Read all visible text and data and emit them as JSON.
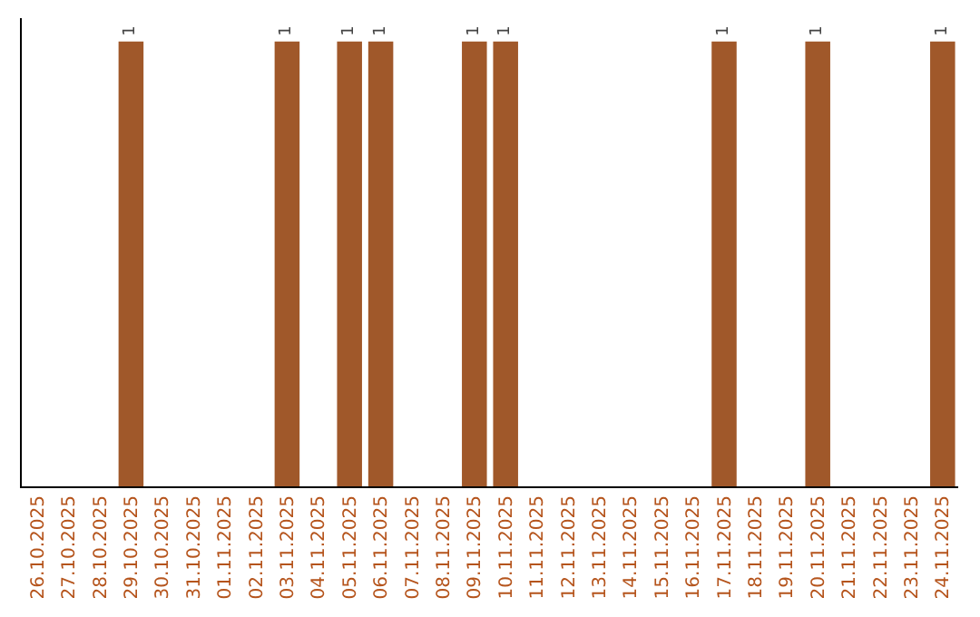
{
  "chart_data": {
    "type": "bar",
    "categories": [
      "26.10.2025",
      "27.10.2025",
      "28.10.2025",
      "29.10.2025",
      "30.10.2025",
      "31.10.2025",
      "01.11.2025",
      "02.11.2025",
      "03.11.2025",
      "04.11.2025",
      "05.11.2025",
      "06.11.2025",
      "07.11.2025",
      "08.11.2025",
      "09.11.2025",
      "10.11.2025",
      "11.11.2025",
      "12.11.2025",
      "13.11.2025",
      "14.11.2025",
      "15.11.2025",
      "16.11.2025",
      "17.11.2025",
      "18.11.2025",
      "19.11.2025",
      "20.11.2025",
      "21.11.2025",
      "22.11.2025",
      "23.11.2025",
      "24.11.2025"
    ],
    "values": [
      0,
      0,
      0,
      1,
      0,
      0,
      0,
      0,
      1,
      0,
      1,
      1,
      0,
      0,
      1,
      1,
      0,
      0,
      0,
      0,
      0,
      0,
      1,
      0,
      0,
      1,
      0,
      0,
      0,
      1
    ],
    "value_labels": [
      null,
      null,
      null,
      "1",
      null,
      null,
      null,
      null,
      "1",
      null,
      "1",
      "1",
      null,
      null,
      "1",
      "1",
      null,
      null,
      null,
      null,
      null,
      null,
      "1",
      null,
      null,
      "1",
      null,
      null,
      null,
      "1"
    ],
    "color": "#a0582a",
    "tick_labels": "x",
    "grid": false,
    "legend": false
  }
}
